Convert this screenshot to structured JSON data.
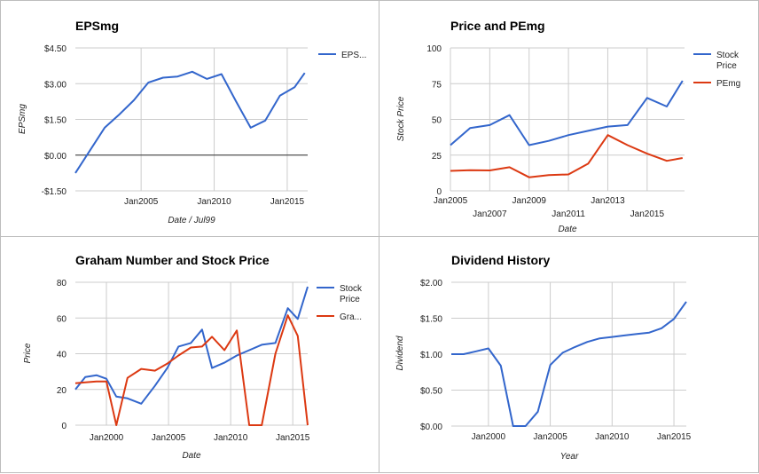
{
  "chart_data": [
    {
      "type": "line",
      "title": "EPSmg",
      "xlabel": "Date / Jul99",
      "ylabel": "EPSmg",
      "xlim": [
        2000.5,
        2016.4
      ],
      "ylim": [
        -1.5,
        4.5
      ],
      "yticks": [
        {
          "v": 4.5,
          "label": "$4.50"
        },
        {
          "v": 3.0,
          "label": "$3.00"
        },
        {
          "v": 1.5,
          "label": "$1.50"
        },
        {
          "v": 0,
          "label": "$0.00"
        },
        {
          "v": -1.5,
          "label": "-$1.50"
        }
      ],
      "xticks": [
        {
          "v": 2005,
          "label": "Jan2005"
        },
        {
          "v": 2010,
          "label": "Jan2010"
        },
        {
          "v": 2015,
          "label": "Jan2015"
        }
      ],
      "baseline": 0,
      "series": [
        {
          "name": "EPS...",
          "color": "#3366cc",
          "x": [
            2000.5,
            2001.5,
            2002.5,
            2003.5,
            2004.5,
            2005.5,
            2006.5,
            2007.5,
            2008.5,
            2009.5,
            2010.5,
            2011.5,
            2012.5,
            2013.5,
            2014.5,
            2015.5,
            2016.2
          ],
          "values": [
            -0.75,
            0.2,
            1.15,
            1.7,
            2.3,
            3.05,
            3.25,
            3.3,
            3.5,
            3.2,
            3.4,
            2.25,
            1.15,
            1.45,
            2.5,
            2.85,
            3.45
          ]
        }
      ]
    },
    {
      "type": "line",
      "title": "Price and PEmg",
      "xlabel": "Date",
      "ylabel": "Stock Price",
      "xlim": [
        2005,
        2016.9
      ],
      "ylim": [
        0,
        100
      ],
      "yticks": [
        {
          "v": 100,
          "label": "100"
        },
        {
          "v": 75,
          "label": "75"
        },
        {
          "v": 50,
          "label": "50"
        },
        {
          "v": 25,
          "label": "25"
        },
        {
          "v": 0,
          "label": "0"
        }
      ],
      "xticks": [
        {
          "v": 2005,
          "label": "Jan2005",
          "row": 0
        },
        {
          "v": 2007,
          "label": "Jan2007",
          "row": 1
        },
        {
          "v": 2009,
          "label": "Jan2009",
          "row": 0
        },
        {
          "v": 2011,
          "label": "Jan2011",
          "row": 1
        },
        {
          "v": 2013,
          "label": "Jan2013",
          "row": 0
        },
        {
          "v": 2015,
          "label": "Jan2015",
          "row": 1
        }
      ],
      "series": [
        {
          "name": "Stock Price",
          "color": "#3366cc",
          "x": [
            2005,
            2006,
            2007,
            2008,
            2009,
            2010,
            2011,
            2012,
            2013,
            2014,
            2015,
            2016,
            2016.8
          ],
          "values": [
            32,
            44,
            46,
            53,
            32,
            35,
            39,
            42,
            45,
            46,
            65,
            59,
            77
          ]
        },
        {
          "name": "PEmg",
          "color": "#dc3912",
          "x": [
            2005,
            2006,
            2007,
            2008,
            2009,
            2010,
            2011,
            2012,
            2013,
            2014,
            2015,
            2016,
            2016.8
          ],
          "values": [
            14,
            14.5,
            14.3,
            16.5,
            9.5,
            11,
            11.5,
            19,
            39,
            32,
            26,
            21,
            23
          ]
        }
      ]
    },
    {
      "type": "line",
      "title": "Graham Number and Stock Price",
      "xlabel": "Date",
      "ylabel": "Price",
      "xlim": [
        1997.5,
        2016.2
      ],
      "ylim": [
        0,
        80
      ],
      "yticks": [
        {
          "v": 80,
          "label": "80"
        },
        {
          "v": 60,
          "label": "60"
        },
        {
          "v": 40,
          "label": "40"
        },
        {
          "v": 20,
          "label": "20"
        },
        {
          "v": 0,
          "label": "0"
        }
      ],
      "xticks": [
        {
          "v": 2000,
          "label": "Jan2000"
        },
        {
          "v": 2005,
          "label": "Jan2005"
        },
        {
          "v": 2010,
          "label": "Jan2010"
        },
        {
          "v": 2015,
          "label": "Jan2015"
        }
      ],
      "series": [
        {
          "name": "Stock Price",
          "color": "#3366cc",
          "x": [
            1997.5,
            1998.3,
            1999.2,
            2000,
            2000.8,
            2001.7,
            2002.8,
            2003.9,
            2004.9,
            2005.8,
            2006.8,
            2007.7,
            2008.5,
            2009.5,
            2010.5,
            2011.5,
            2012.5,
            2013.6,
            2014.6,
            2015.4,
            2016.2
          ],
          "values": [
            20,
            27,
            28,
            26,
            16,
            15,
            12,
            22,
            32,
            44,
            46,
            53.5,
            32,
            35,
            39,
            42,
            45,
            46,
            65.5,
            59.5,
            77.5
          ]
        },
        {
          "name": "Gra...",
          "color": "#dc3912",
          "x": [
            1997.5,
            1998.3,
            1999.2,
            2000,
            2000.8,
            2001.7,
            2002.8,
            2003.9,
            2004.9,
            2005.8,
            2006.8,
            2007.7,
            2008.5,
            2009.5,
            2010.5,
            2011.5,
            2012.5,
            2013.6,
            2014.6,
            2015.4,
            2016.2
          ],
          "values": [
            23.5,
            24,
            24.5,
            24.5,
            0,
            26.5,
            31.5,
            30.5,
            34.5,
            39,
            43.5,
            44,
            49.5,
            42,
            53,
            0,
            0,
            40,
            61.5,
            50,
            0
          ]
        }
      ]
    },
    {
      "type": "line",
      "title": "Dividend History",
      "xlabel": "Year",
      "ylabel": "Dividend",
      "xlim": [
        1997,
        2016
      ],
      "ylim": [
        0,
        2
      ],
      "yticks": [
        {
          "v": 2,
          "label": "$2.00"
        },
        {
          "v": 1.5,
          "label": "$1.50"
        },
        {
          "v": 1,
          "label": "$1.00"
        },
        {
          "v": 0.5,
          "label": "$0.50"
        },
        {
          "v": 0,
          "label": "$0.00"
        }
      ],
      "xticks": [
        {
          "v": 2000,
          "label": "Jan2000"
        },
        {
          "v": 2005,
          "label": "Jan2005"
        },
        {
          "v": 2010,
          "label": "Jan2010"
        },
        {
          "v": 2015,
          "label": "Jan2015"
        }
      ],
      "series": [
        {
          "name": "",
          "color": "#3366cc",
          "x": [
            1997,
            1998,
            1999,
            2000,
            2001,
            2002,
            2003,
            2004,
            2005,
            2006,
            2007,
            2008,
            2009,
            2010,
            2011,
            2012,
            2013,
            2014,
            2015,
            2016
          ],
          "values": [
            1.0,
            1.0,
            1.04,
            1.08,
            0.84,
            0,
            0,
            0.2,
            0.85,
            1.02,
            1.1,
            1.17,
            1.22,
            1.24,
            1.26,
            1.28,
            1.3,
            1.36,
            1.49,
            1.73
          ]
        }
      ]
    }
  ]
}
